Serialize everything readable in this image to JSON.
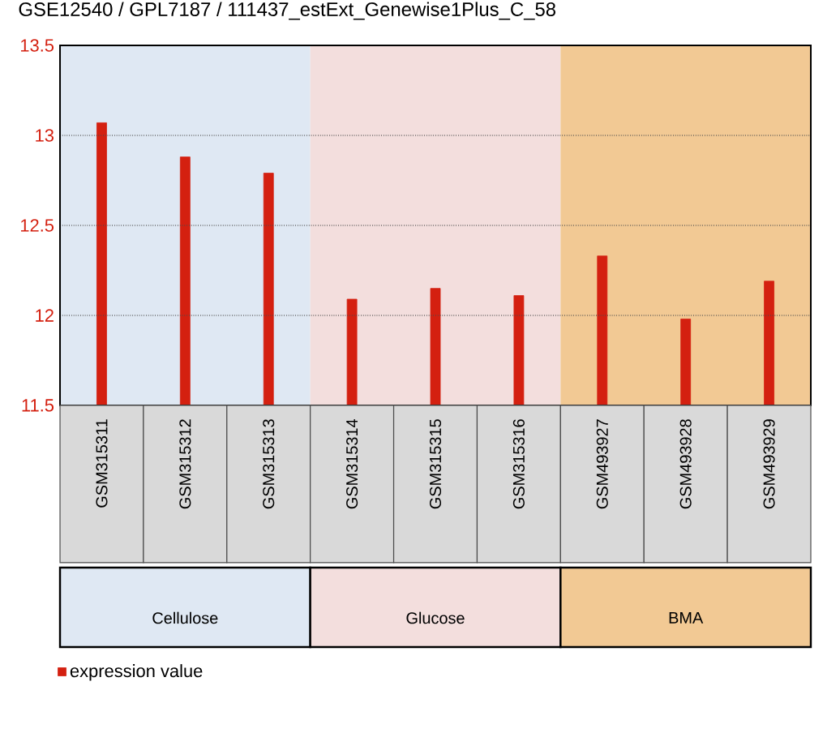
{
  "chart_data": {
    "type": "bar",
    "title": "GSE12540 / GPL7187 / 111437_estExt_Genewise1Plus_C_58",
    "categories": [
      "GSM315311",
      "GSM315312",
      "GSM315313",
      "GSM315314",
      "GSM315315",
      "GSM315316",
      "GSM493927",
      "GSM493928",
      "GSM493929"
    ],
    "series": [
      {
        "name": "expression value",
        "color": "#d42010",
        "values": [
          13.07,
          12.88,
          12.79,
          12.09,
          12.15,
          12.11,
          12.33,
          11.98,
          12.19
        ]
      }
    ],
    "ylim": [
      11.5,
      13.5
    ],
    "yticks": [
      11.5,
      12,
      12.5,
      13,
      13.5
    ],
    "grid": "y",
    "legend": "bottom left",
    "bands": [
      {
        "axis": "x",
        "from": "GSM315311",
        "to": "GSM315313",
        "color": "#dfe8f3"
      },
      {
        "axis": "x",
        "from": "GSM315314",
        "to": "GSM315316",
        "color": "#f3dedd"
      },
      {
        "axis": "x",
        "from": "GSM493927",
        "to": "GSM493929",
        "color": "#f2c994"
      }
    ],
    "annotations": [
      "Cellulose",
      "Glucose",
      "BMA"
    ]
  }
}
